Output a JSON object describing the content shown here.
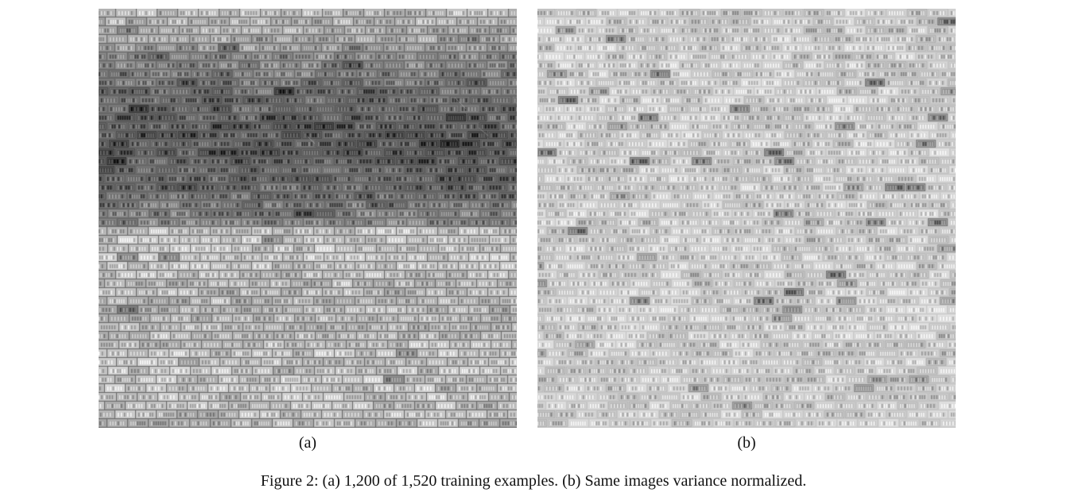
{
  "figure": {
    "panels": [
      {
        "id": "a",
        "label": "(a)",
        "content": "image mosaic of license plate crops (raw intensity)"
      },
      {
        "id": "b",
        "label": "(b)",
        "content": "same image mosaic variance normalized"
      }
    ],
    "caption": "Figure 2: (a) 1,200 of 1,520 training examples. (b) Same images variance normalized."
  },
  "colors": {
    "background": "#ffffff",
    "text": "#111111"
  }
}
